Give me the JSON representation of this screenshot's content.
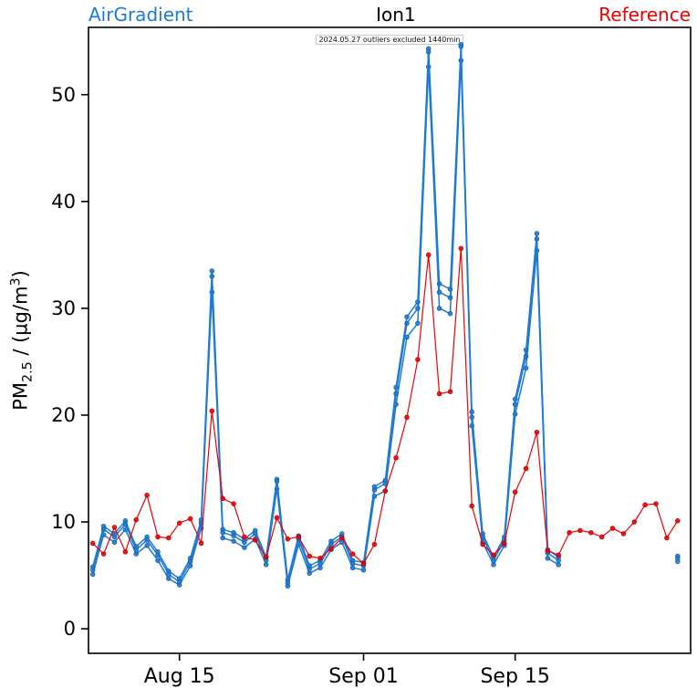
{
  "header": {
    "left_label": "AirGradient",
    "title": "Ion1",
    "right_label": "Reference",
    "subtitle": "2024.05.27 outliers excluded 1440min"
  },
  "colors": {
    "airgradient_blue": "#1e7ad4",
    "reference_red": "#ee0000",
    "axis_black": "#000000"
  },
  "axis": {
    "ylabel_pm": "PM",
    "ylabel_sub": "2.5",
    "ylabel_mid": " / (µg/m",
    "ylabel_sup": "3",
    "ylabel_end": ")"
  },
  "chart_data": {
    "type": "line",
    "title": "Ion1",
    "subtitle": "2024.05.27 outliers excluded 1440min",
    "ylabel": "PM2.5 / (ug/m3)",
    "legend": [
      {
        "label": "AirGradient",
        "color": "#1e7ad4",
        "position": "top-left"
      },
      {
        "label": "Reference",
        "color": "#ee0000",
        "position": "top-right"
      }
    ],
    "grid": false,
    "xlim": [
      -0.4,
      55.2
    ],
    "ylim": [
      -2.3,
      56.3
    ],
    "y_ticks": [
      0,
      10,
      20,
      30,
      40,
      50
    ],
    "x_ticks": [
      {
        "day": 8,
        "label": "Aug 15"
      },
      {
        "day": 25,
        "label": "Sep 01"
      },
      {
        "day": 39,
        "label": "Sep 15"
      }
    ],
    "series": [
      {
        "name": "AirGradient-2",
        "color": "#1e7ad4",
        "marker_stroke": "#1563b0",
        "width": 1.5,
        "values": [
          5.1,
          8.8,
          8.1,
          9.3,
          7.0,
          7.8,
          6.4,
          4.7,
          4.1,
          5.9,
          9.4,
          31.5,
          8.5,
          8.2,
          7.6,
          8.4,
          6.0,
          13.1,
          4.0,
          7.9,
          5.2,
          5.7,
          7.4,
          8.1,
          5.7,
          5.5,
          12.4,
          12.9,
          21.0,
          27.3,
          28.6,
          52.6,
          30.0,
          29.5,
          53.2,
          19.0,
          8.1,
          6.0,
          7.8,
          20.1,
          24.4,
          35.4,
          6.6,
          6.0,
          null,
          null,
          null,
          null,
          null,
          null,
          null,
          null,
          null,
          null,
          6.3
        ]
      },
      {
        "name": "AirGradient-3",
        "color": "#1e7ad4",
        "marker_stroke": "#1563b0",
        "width": 1.5,
        "values": [
          5.8,
          9.6,
          8.9,
          10.1,
          7.7,
          8.6,
          7.2,
          5.4,
          4.7,
          6.6,
          10.2,
          33.5,
          9.3,
          9.0,
          8.4,
          9.2,
          6.7,
          14.0,
          4.6,
          8.7,
          5.9,
          6.4,
          8.2,
          8.9,
          6.4,
          6.2,
          13.3,
          13.9,
          22.6,
          29.2,
          30.6,
          54.3,
          32.3,
          31.8,
          54.7,
          20.3,
          8.9,
          6.7,
          8.6,
          21.5,
          26.1,
          37.0,
          7.4,
          6.7,
          null,
          null,
          null,
          null,
          null,
          null,
          null,
          null,
          null,
          null,
          6.8
        ]
      },
      {
        "name": "AirGradient-1",
        "color": "#1e7ad4",
        "marker_stroke": "#1563b0",
        "width": 1.5,
        "values": [
          5.5,
          9.3,
          8.6,
          9.8,
          7.4,
          8.3,
          6.9,
          5.1,
          4.4,
          6.3,
          9.9,
          33.0,
          9.0,
          8.7,
          8.1,
          8.9,
          6.4,
          13.8,
          4.3,
          8.4,
          5.6,
          6.1,
          7.9,
          8.6,
          6.1,
          5.9,
          13.0,
          13.6,
          22.0,
          28.6,
          30.0,
          54.0,
          31.5,
          31.0,
          54.5,
          19.8,
          8.6,
          6.4,
          8.3,
          21.0,
          25.5,
          36.5,
          7.1,
          6.4,
          null,
          null,
          null,
          null,
          null,
          null,
          null,
          null,
          null,
          null,
          6.6
        ]
      },
      {
        "name": "Reference",
        "color": "#ee0000",
        "marker_stroke": "#c00000",
        "width": 1.2,
        "values": [
          8.0,
          7.0,
          9.5,
          7.2,
          10.2,
          12.5,
          8.6,
          8.5,
          9.9,
          10.3,
          8.0,
          20.4,
          12.2,
          11.7,
          8.6,
          8.3,
          6.7,
          10.4,
          8.4,
          8.6,
          6.8,
          6.6,
          7.5,
          8.5,
          7.0,
          6.1,
          7.9,
          12.9,
          16.0,
          19.8,
          25.2,
          35.0,
          22.0,
          22.2,
          35.6,
          11.5,
          7.9,
          6.9,
          8.0,
          12.8,
          15.0,
          18.4,
          7.3,
          6.9,
          9.0,
          9.2,
          9.0,
          8.6,
          9.4,
          8.9,
          10.0,
          11.6,
          11.7,
          8.5,
          10.1
        ]
      }
    ]
  }
}
